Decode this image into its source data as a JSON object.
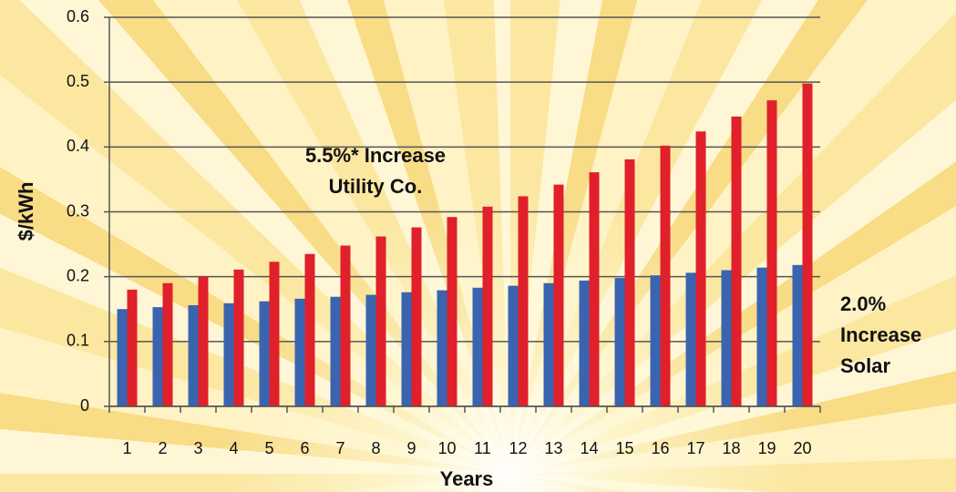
{
  "chart_data": {
    "type": "bar",
    "y_label": "$/kWh",
    "x_label": "Years",
    "categories": [
      "1",
      "2",
      "3",
      "4",
      "5",
      "6",
      "7",
      "8",
      "9",
      "10",
      "11",
      "12",
      "13",
      "14",
      "15",
      "16",
      "17",
      "18",
      "19",
      "20"
    ],
    "series": [
      {
        "color": "#3a64b0",
        "values": [
          0.15,
          0.153,
          0.156,
          0.159,
          0.162,
          0.166,
          0.169,
          0.172,
          0.176,
          0.179,
          0.183,
          0.186,
          0.19,
          0.194,
          0.198,
          0.202,
          0.206,
          0.21,
          0.214,
          0.218
        ]
      },
      {
        "color": "#e0202a",
        "values": [
          0.18,
          0.19,
          0.2,
          0.211,
          0.223,
          0.235,
          0.248,
          0.262,
          0.276,
          0.292,
          0.308,
          0.324,
          0.342,
          0.361,
          0.381,
          0.402,
          0.424,
          0.447,
          0.472,
          0.498
        ]
      }
    ],
    "ylim": [
      0,
      0.6
    ],
    "yticks": [
      0,
      0.1,
      0.2,
      0.3,
      0.4,
      0.5,
      0.6
    ],
    "grid": true,
    "annotations": [
      {
        "lines": [
          "5.5%* Increase",
          "Utility Co."
        ]
      },
      {
        "lines": [
          "2.0%",
          "Increase",
          "Solar"
        ]
      }
    ]
  }
}
